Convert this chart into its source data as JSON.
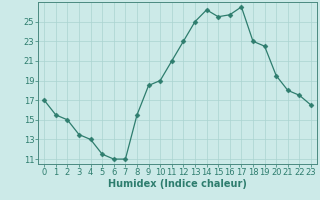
{
  "title": "",
  "xlabel": "Humidex (Indice chaleur)",
  "ylabel": "",
  "x": [
    0,
    1,
    2,
    3,
    4,
    5,
    6,
    7,
    8,
    9,
    10,
    11,
    12,
    13,
    14,
    15,
    16,
    17,
    18,
    19,
    20,
    21,
    22,
    23
  ],
  "y": [
    17.0,
    15.5,
    15.0,
    13.5,
    13.0,
    11.5,
    11.0,
    11.0,
    15.5,
    18.5,
    19.0,
    21.0,
    23.0,
    25.0,
    26.2,
    25.5,
    25.7,
    26.5,
    23.0,
    22.5,
    19.5,
    18.0,
    17.5,
    16.5
  ],
  "line_color": "#2e7d6e",
  "marker": "D",
  "marker_size": 2.5,
  "bg_color": "#cceae8",
  "grid_color": "#aad4d0",
  "ylim": [
    10.5,
    27.0
  ],
  "yticks": [
    11,
    13,
    15,
    17,
    19,
    21,
    23,
    25
  ],
  "xlim": [
    -0.5,
    23.5
  ],
  "axis_fontsize": 6.5,
  "tick_fontsize": 6.0,
  "xlabel_fontsize": 7.0
}
